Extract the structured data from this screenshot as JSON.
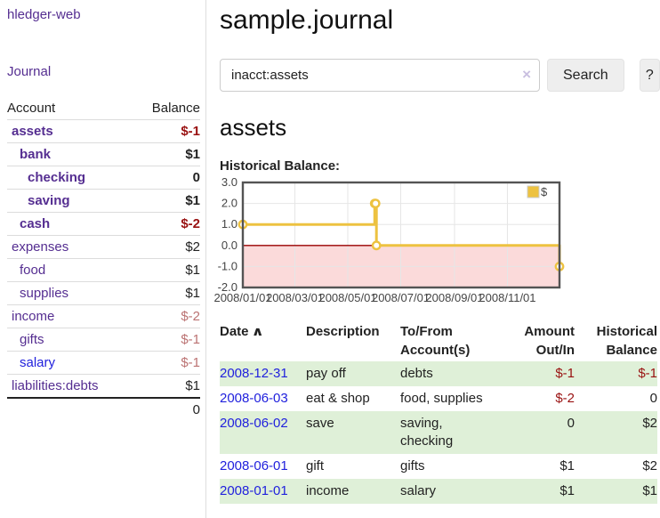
{
  "app": {
    "title": "hledger-web",
    "nav_journal": "Journal"
  },
  "sidebar": {
    "header": {
      "account": "Account",
      "balance": "Balance"
    },
    "accounts": [
      {
        "name": "assets",
        "balance": "$-1",
        "indent": 0,
        "bold": true,
        "blue": false
      },
      {
        "name": "bank",
        "balance": "$1",
        "indent": 1,
        "bold": true,
        "blue": false
      },
      {
        "name": "checking",
        "balance": "0",
        "indent": 2,
        "bold": true,
        "blue": false
      },
      {
        "name": "saving",
        "balance": "$1",
        "indent": 2,
        "bold": true,
        "blue": false
      },
      {
        "name": "cash",
        "balance": "$-2",
        "indent": 1,
        "bold": true,
        "blue": false
      },
      {
        "name": "expenses",
        "balance": "$2",
        "indent": 0,
        "bold": false,
        "blue": false
      },
      {
        "name": "food",
        "balance": "$1",
        "indent": 1,
        "bold": false,
        "blue": false
      },
      {
        "name": "supplies",
        "balance": "$1",
        "indent": 1,
        "bold": false,
        "blue": false
      },
      {
        "name": "income",
        "balance": "$-2",
        "indent": 0,
        "bold": false,
        "blue": false
      },
      {
        "name": "gifts",
        "balance": "$-1",
        "indent": 1,
        "bold": false,
        "blue": false
      },
      {
        "name": "salary",
        "balance": "$-1",
        "indent": 1,
        "bold": false,
        "blue": true
      },
      {
        "name": "liabilities:debts",
        "balance": "$1",
        "indent": 0,
        "bold": false,
        "blue": false
      }
    ],
    "total": "0"
  },
  "main": {
    "title": "sample.journal",
    "search": {
      "value": "inacct:assets",
      "clear_icon": "×",
      "button": "Search",
      "help": "?"
    },
    "account_title": "assets",
    "chart_label": "Historical Balance:"
  },
  "chart_data": {
    "type": "line",
    "title": "Historical Balance",
    "series": [
      {
        "name": "$",
        "color": "#EDC240",
        "points": [
          [
            "2008-01-01",
            1
          ],
          [
            "2008-06-01",
            2
          ],
          [
            "2008-06-02",
            2
          ],
          [
            "2008-06-03",
            0
          ],
          [
            "2008-12-31",
            -1
          ]
        ]
      }
    ],
    "step": true,
    "legend": "$",
    "legend_position": "top-right",
    "x_range": [
      "2008-01-01",
      "2008-12-31"
    ],
    "ylim": [
      -2,
      3
    ],
    "x_ticks": [
      "2008/01/01",
      "2008/03/01",
      "2008/05/01",
      "2008/07/01",
      "2008/09/01",
      "2008/11/01"
    ],
    "y_ticks": [
      "3.0",
      "2.0",
      "1.0",
      "0.0",
      "-1.0",
      "-2.0"
    ],
    "y_gridlines": [
      2,
      1,
      -1
    ],
    "grid_color": "#e6e6e6",
    "frame_color": "#545454",
    "negative_region_color": "#fbdada",
    "zero_line_color": "#990000",
    "marker_fill": "#ffffff"
  },
  "table": {
    "sort_icon": "∧",
    "headers": {
      "date": "Date",
      "description": "Description",
      "tofrom": "To/From Account(s)",
      "amount": "Amount Out/In",
      "balance": "Historical Balance"
    },
    "rows": [
      {
        "date": "2008-12-31",
        "description": "pay off",
        "accounts": "debts",
        "amount": "$-1",
        "balance": "$-1"
      },
      {
        "date": "2008-06-03",
        "description": "eat & shop",
        "accounts": "food, supplies",
        "amount": "$-2",
        "balance": "0"
      },
      {
        "date": "2008-06-02",
        "description": "save",
        "accounts": "saving, checking",
        "amount": "0",
        "balance": "$2"
      },
      {
        "date": "2008-06-01",
        "description": "gift",
        "accounts": "gifts",
        "amount": "$1",
        "balance": "$2"
      },
      {
        "date": "2008-01-01",
        "description": "income",
        "accounts": "salary",
        "amount": "$1",
        "balance": "$1"
      }
    ]
  }
}
